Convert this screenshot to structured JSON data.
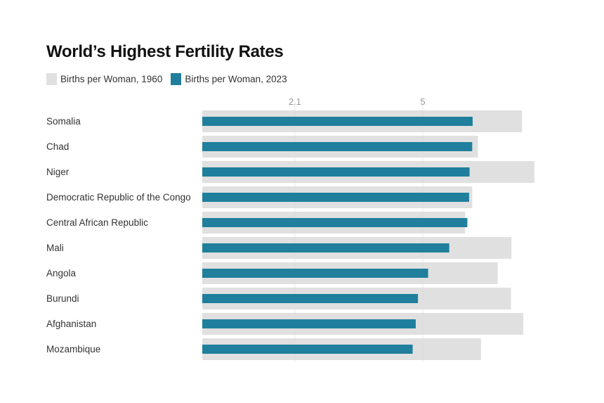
{
  "chart_data": {
    "type": "bar",
    "title": "World’s Highest Fertility Rates",
    "categories": [
      "Somalia",
      "Chad",
      "Niger",
      "Democratic Republic of the Congo",
      "Central African Republic",
      "Mali",
      "Angola",
      "Burundi",
      "Afghanistan",
      "Mozambique"
    ],
    "series": [
      {
        "name": "Births per Woman, 1960",
        "color": "#e0e0e0",
        "values": [
          7.25,
          6.25,
          7.53,
          6.12,
          5.96,
          7.01,
          6.7,
          7.0,
          7.28,
          6.32
        ]
      },
      {
        "name": "Births per Woman, 2023",
        "color": "#1f7f9c",
        "values": [
          6.13,
          6.12,
          6.06,
          6.05,
          6.01,
          5.6,
          5.12,
          4.89,
          4.84,
          4.77
        ]
      }
    ],
    "xaxis_ticks": [
      {
        "value": 2.1,
        "label": "2.1"
      },
      {
        "value": 5,
        "label": "5"
      }
    ],
    "xlim": [
      0,
      7.6
    ],
    "xlabel": "",
    "ylabel": "",
    "grid": "vertical",
    "legend": "top-left"
  }
}
